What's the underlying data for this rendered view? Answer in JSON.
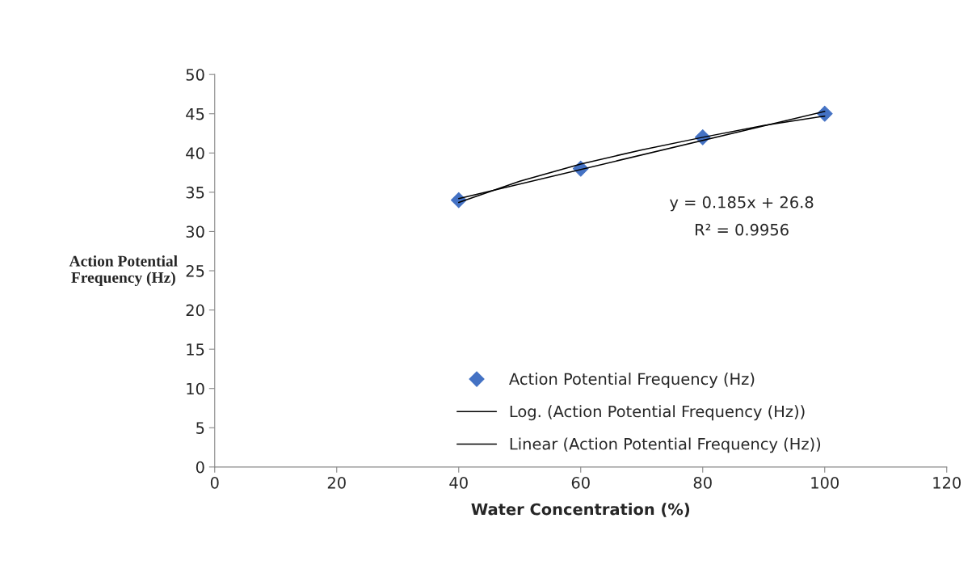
{
  "chart_data": {
    "type": "scatter",
    "xlabel": "Water Concentration (%)",
    "ylabel": "Action Potential\nFrequency (Hz)",
    "series": [
      {
        "name": "Action Potential Frequency (Hz)",
        "color": "#4472c4",
        "marker": "diamond",
        "x": [
          40,
          60,
          80,
          100
        ],
        "values": [
          34,
          38,
          42,
          45
        ]
      },
      {
        "name": "Log. (Action Potential Frequency (Hz))",
        "type": "line",
        "color": "#000000",
        "marker": "none",
        "line_style": "solid",
        "x": [
          40,
          50,
          60,
          70,
          80,
          90,
          100
        ],
        "values": [
          33.7,
          36.4,
          38.6,
          40.4,
          42.0,
          43.5,
          44.7
        ]
      },
      {
        "name": "Linear (Action Potential Frequency (Hz))",
        "type": "line",
        "color": "#000000",
        "marker": "none",
        "line_style": "solid",
        "x": [
          40,
          100
        ],
        "values": [
          34.2,
          45.3
        ]
      }
    ],
    "annotations": [
      "y = 0.185x + 26.8",
      "R² = 0.9956"
    ],
    "xlim": [
      0,
      120
    ],
    "xticks": [
      0,
      20,
      40,
      60,
      80,
      100,
      120
    ],
    "ylim": [
      0,
      50
    ],
    "yticks": [
      0,
      5,
      10,
      15,
      20,
      25,
      30,
      35,
      40,
      45,
      50
    ],
    "grid": false,
    "legend": "bottom"
  }
}
